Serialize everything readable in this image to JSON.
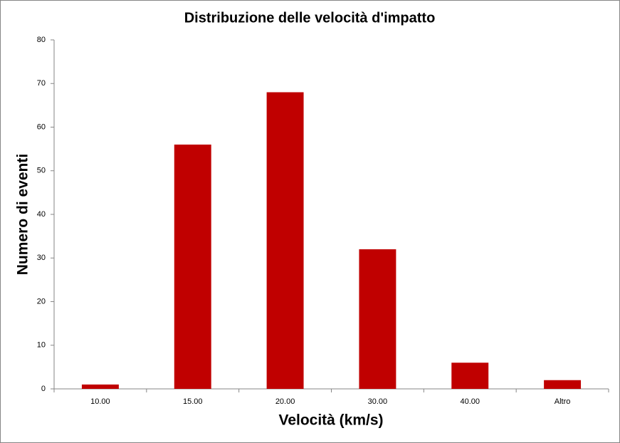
{
  "chart_data": {
    "type": "bar",
    "title": "Distribuzione delle velocità d'impatto",
    "x_label": "Velocità (km/s)",
    "y_label": "Numero di eventi",
    "categories": [
      "10.00",
      "15.00",
      "20.00",
      "30.00",
      "40.00",
      "Altro"
    ],
    "values": [
      1,
      56,
      68,
      32,
      6,
      2
    ],
    "color": "#c00000",
    "ylim": [
      0,
      80
    ],
    "yticks": [
      0,
      10,
      20,
      30,
      40,
      50,
      60,
      70,
      80
    ],
    "grid": false
  }
}
